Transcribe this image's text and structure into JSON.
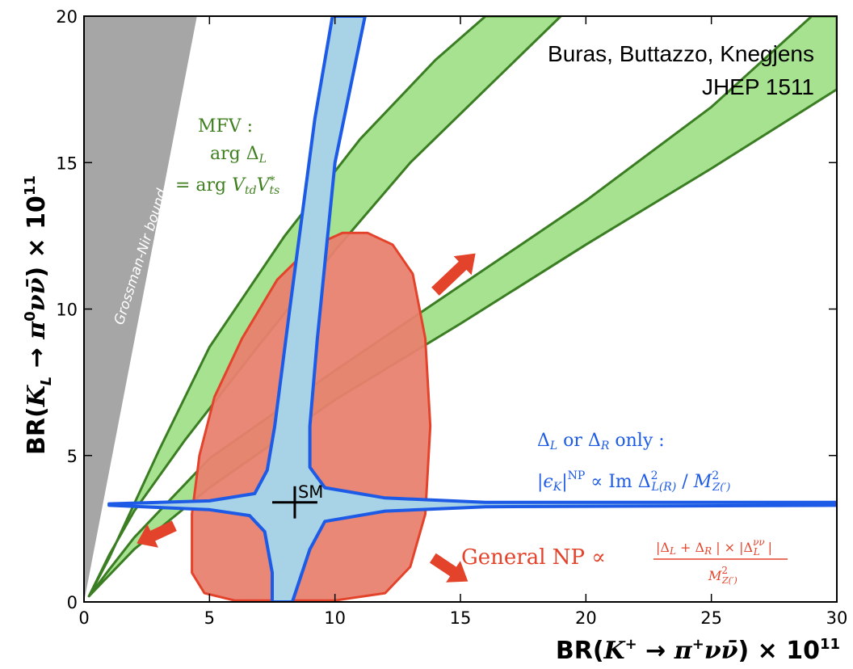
{
  "chart_data": {
    "type": "region-plot",
    "xlabel": "BR(K⁺ → π⁺νν̄) × 10¹¹",
    "ylabel": "BR(K_L → π⁰νν̄) × 10¹¹",
    "xlim": [
      0,
      30
    ],
    "ylim": [
      0,
      20
    ],
    "xticks": [
      0,
      5,
      10,
      15,
      20,
      25,
      30
    ],
    "yticks": [
      0,
      5,
      10,
      15,
      20
    ],
    "grid": false,
    "credit": [
      "Buras, Buttazzo, Knegjens",
      "JHEP 1511"
    ],
    "regions": [
      {
        "id": "grossman-nir",
        "label": "Grossman-Nir bound",
        "color": "#a6a6a6",
        "polygon": [
          [
            0,
            0
          ],
          [
            0,
            20
          ],
          [
            4.5,
            20
          ],
          [
            0,
            0
          ]
        ]
      },
      {
        "id": "mfv-upper",
        "label": "MFV band",
        "color": "#a6e290",
        "edge": "#3b7d23",
        "polygon": [
          [
            0.2,
            0.2
          ],
          [
            1,
            1.5
          ],
          [
            3,
            5.2
          ],
          [
            5,
            8.7
          ],
          [
            8,
            12.5
          ],
          [
            11,
            15.8
          ],
          [
            14,
            18.5
          ],
          [
            16,
            20
          ],
          [
            19,
            20
          ],
          [
            16,
            17.5
          ],
          [
            13,
            15
          ],
          [
            10,
            12
          ],
          [
            7,
            8.8
          ],
          [
            4,
            5.5
          ],
          [
            2,
            3.1
          ],
          [
            1,
            1.6
          ],
          [
            0.2,
            0.2
          ]
        ]
      },
      {
        "id": "mfv-lower",
        "label": "MFV band",
        "color": "#a6e290",
        "edge": "#3b7d23",
        "polygon": [
          [
            0.2,
            0.2
          ],
          [
            2,
            1.8
          ],
          [
            5,
            3.9
          ],
          [
            10,
            6.9
          ],
          [
            15,
            9.5
          ],
          [
            20,
            12.2
          ],
          [
            25,
            14.8
          ],
          [
            30,
            17.5
          ],
          [
            30,
            20
          ],
          [
            29,
            20
          ],
          [
            25,
            16.9
          ],
          [
            20,
            13.7
          ],
          [
            15,
            10.8
          ],
          [
            10,
            7.9
          ],
          [
            5,
            4.9
          ],
          [
            2,
            2.2
          ],
          [
            1,
            1.1
          ],
          [
            0.2,
            0.2
          ]
        ]
      },
      {
        "id": "general-np",
        "label": "General NP",
        "color": "#e8826f",
        "edge": "#e4432b",
        "polygon": [
          [
            10.3,
            12.6
          ],
          [
            11.3,
            12.6
          ],
          [
            12.3,
            12.2
          ],
          [
            13.1,
            11.2
          ],
          [
            13.6,
            9
          ],
          [
            13.8,
            6
          ],
          [
            13.6,
            3
          ],
          [
            13,
            1.2
          ],
          [
            12,
            0.3
          ],
          [
            10,
            0.05
          ],
          [
            6,
            0.05
          ],
          [
            4.8,
            0.3
          ],
          [
            4.3,
            1
          ],
          [
            4.3,
            3
          ],
          [
            4.6,
            5
          ],
          [
            5.2,
            7
          ],
          [
            6.3,
            9
          ],
          [
            7.7,
            11
          ],
          [
            9,
            12.1
          ],
          [
            10.3,
            12.6
          ]
        ]
      },
      {
        "id": "left-handed-only",
        "label": "Δ_L or Δ_R only",
        "color": "#a8d3e6",
        "edge": "#1d5be6",
        "polygon": [
          [
            1,
            3.35
          ],
          [
            5,
            3.45
          ],
          [
            6.8,
            3.7
          ],
          [
            7.3,
            4.5
          ],
          [
            7.6,
            6
          ],
          [
            8.2,
            10
          ],
          [
            9.2,
            16.5
          ],
          [
            9.9,
            20
          ],
          [
            11.2,
            20
          ],
          [
            10,
            15
          ],
          [
            9.3,
            9
          ],
          [
            9,
            6
          ],
          [
            9,
            4.6
          ],
          [
            9.6,
            3.9
          ],
          [
            12,
            3.55
          ],
          [
            16,
            3.4
          ],
          [
            30,
            3.4
          ],
          [
            30,
            3.3
          ],
          [
            16,
            3.25
          ],
          [
            12,
            3.1
          ],
          [
            9.6,
            2.75
          ],
          [
            9,
            1.8
          ],
          [
            8.3,
            0
          ],
          [
            7.5,
            0
          ],
          [
            7.5,
            1
          ],
          [
            7.2,
            2.4
          ],
          [
            6.6,
            2.95
          ],
          [
            5,
            3.15
          ],
          [
            1,
            3.3
          ]
        ]
      }
    ],
    "annotations": [
      {
        "id": "mfv",
        "text_lines": [
          "MFV :",
          "arg Δ_L",
          "= arg V_td V*_ts"
        ],
        "color": "#3f7f1f"
      },
      {
        "id": "lr",
        "text_lines": [
          "Δ_L or Δ_R only :",
          "|ε_K|^NP ∝ Im Δ²_L(R) / M²_Z(')"
        ],
        "color": "#1d5be6"
      },
      {
        "id": "general",
        "text_lines": [
          "General NP ∝",
          "|Δ_L + Δ_R| × |Δ_L^νν|",
          "M²_Z(')"
        ],
        "color": "#e4432b"
      }
    ],
    "sm_point": {
      "label": "SM",
      "x": 8.4,
      "y": 3.4,
      "x_err": 0.9,
      "y_err": 0.55
    },
    "arrows": [
      {
        "id": "arrow-up-right",
        "from": [
          14,
          10.6
        ],
        "to": [
          15.6,
          11.9
        ],
        "color": "#e4432b"
      },
      {
        "id": "arrow-left-down",
        "from": [
          3.6,
          2.6
        ],
        "to": [
          2.1,
          2.0
        ],
        "color": "#e4432b"
      },
      {
        "id": "arrow-down-right",
        "from": [
          13.9,
          1.5
        ],
        "to": [
          15.3,
          0.7
        ],
        "color": "#e4432b"
      }
    ]
  },
  "labels": {
    "credit_line1": "Buras, Buttazzo, Knegjens",
    "credit_line2": "JHEP 1511",
    "grossman_nir": "Grossman-Nir bound",
    "sm": "SM"
  }
}
